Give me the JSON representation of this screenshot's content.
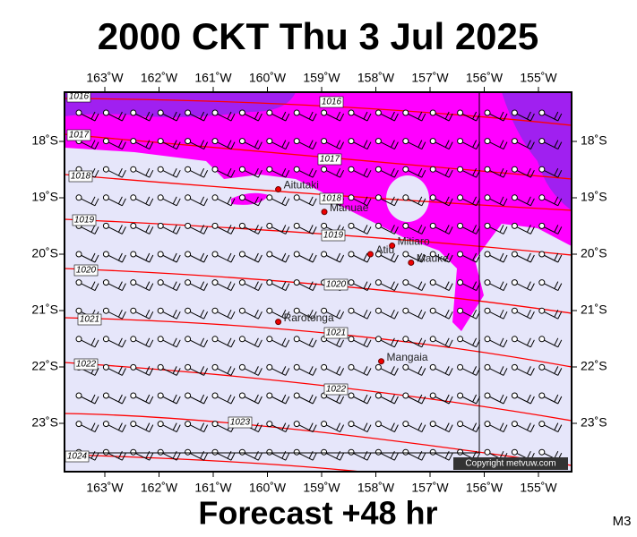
{
  "title": "2000 CKT Thu 3 Jul 2025",
  "subtitle": "Forecast +48 hr",
  "corner_label": "M3",
  "copyright": "Copyright metvuw.com",
  "lon_ticks": [
    {
      "value": 163,
      "label": "163˚W"
    },
    {
      "value": 162,
      "label": "162˚W"
    },
    {
      "value": 161,
      "label": "161˚W"
    },
    {
      "value": 160,
      "label": "160˚W"
    },
    {
      "value": 159,
      "label": "159˚W"
    },
    {
      "value": 158,
      "label": "158˚W"
    },
    {
      "value": 157,
      "label": "157˚W"
    },
    {
      "value": 156,
      "label": "156˚W"
    },
    {
      "value": 155,
      "label": "155˚W"
    }
  ],
  "lat_ticks": [
    {
      "value": 18,
      "label": "18˚S"
    },
    {
      "value": 19,
      "label": "19˚S"
    },
    {
      "value": 20,
      "label": "20˚S"
    },
    {
      "value": 21,
      "label": "21˚S"
    },
    {
      "value": 22,
      "label": "22˚S"
    },
    {
      "value": 23,
      "label": "23˚S"
    }
  ],
  "islands": [
    {
      "name": "Aitutaki",
      "lon": 159.8,
      "lat": 18.85
    },
    {
      "name": "Manuae",
      "lon": 158.95,
      "lat": 19.25
    },
    {
      "name": "Mitiaro",
      "lon": 157.7,
      "lat": 19.85
    },
    {
      "name": "Atiu",
      "lon": 158.1,
      "lat": 20.0
    },
    {
      "name": "Mauke",
      "lon": 157.35,
      "lat": 20.15
    },
    {
      "name": "Rarotonga",
      "lon": 159.8,
      "lat": 21.2
    },
    {
      "name": "Mangaia",
      "lon": 157.9,
      "lat": 21.9
    }
  ],
  "isobar_labels": [
    1016,
    1016,
    1017,
    1017,
    1018,
    1018,
    1019,
    1019,
    1020,
    1020,
    1021,
    1021,
    1022,
    1022,
    1023,
    1024
  ]
}
